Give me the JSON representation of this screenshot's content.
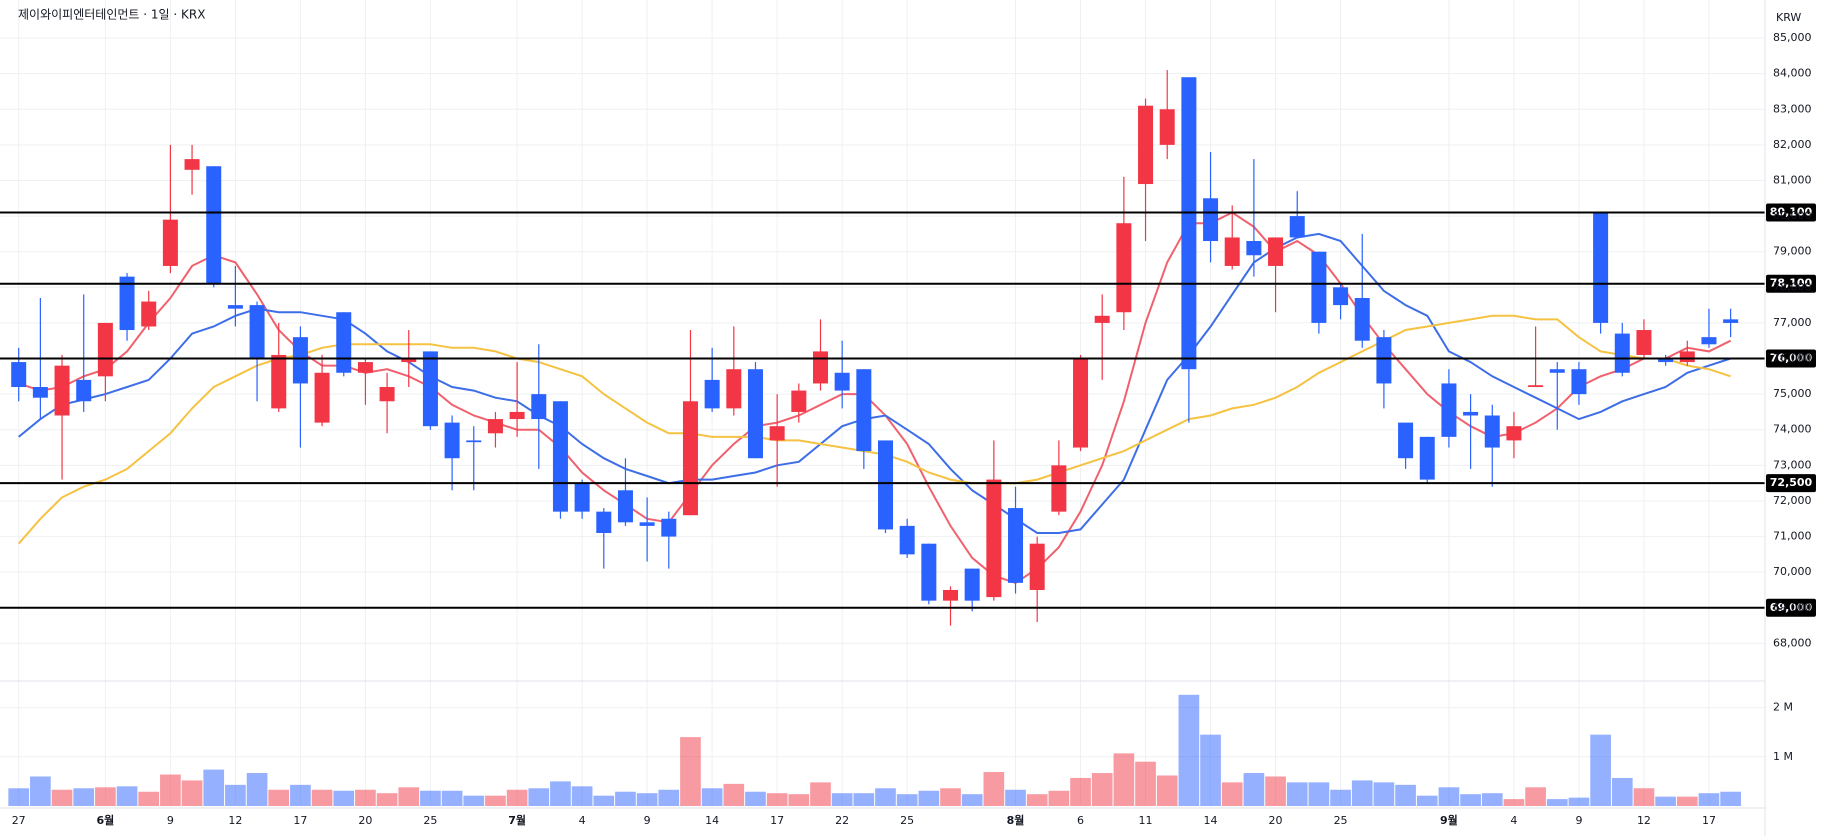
{
  "chart_data": {
    "type": "candlestick",
    "title": "제이와이피엔터테인먼트 · 1일 · KRX",
    "currency": "KRW",
    "up_color": "#f23645",
    "down_color": "#2962ff",
    "categories": [
      "27",
      null,
      null,
      null,
      "6월",
      null,
      null,
      "9",
      null,
      null,
      "12",
      null,
      null,
      "17",
      null,
      null,
      "20",
      null,
      null,
      "25",
      null,
      null,
      null,
      "7월",
      null,
      null,
      "4",
      null,
      null,
      "9",
      null,
      null,
      "14",
      null,
      null,
      "17",
      null,
      null,
      "22",
      null,
      null,
      "25",
      null,
      null,
      null,
      null,
      "8월",
      null,
      null,
      "6",
      null,
      null,
      "11",
      null,
      null,
      "14",
      null,
      null,
      "20",
      null,
      null,
      "25",
      null,
      null,
      null,
      null,
      "9월",
      null,
      null,
      "4",
      null,
      null,
      "9",
      null,
      null,
      "12",
      null,
      null,
      "17",
      null
    ],
    "open": [
      75900,
      75200,
      74400,
      75400,
      75500,
      78300,
      76900,
      78600,
      81300,
      81400,
      77500,
      77500,
      74600,
      76600,
      74200,
      77300,
      75600,
      74800,
      75900,
      76200,
      74200,
      73700,
      73900,
      74300,
      75000,
      74800,
      72500,
      71700,
      72300,
      71400,
      71500,
      71600,
      75400,
      74600,
      75700,
      73700,
      74500,
      75300,
      75600,
      75700,
      73700,
      71300,
      70800,
      69200,
      70100,
      69300,
      71800,
      69500,
      71700,
      73500,
      77000,
      77300,
      80900,
      82000,
      83900,
      80500,
      78600,
      79300,
      78600,
      80000,
      79000,
      78000,
      77700,
      76600,
      74200,
      73800,
      75300,
      74500,
      74400,
      73700,
      75200,
      75700,
      75700,
      80100,
      76700,
      76100,
      76000,
      75900,
      76600,
      77100
    ],
    "high": [
      76300,
      77700,
      76100,
      77800,
      77000,
      78400,
      77900,
      82000,
      82000,
      81400,
      78600,
      77600,
      77000,
      76900,
      76100,
      77300,
      76000,
      75600,
      76800,
      76200,
      74400,
      74100,
      74500,
      75900,
      76400,
      74800,
      72600,
      71800,
      73200,
      72100,
      71700,
      76800,
      76300,
      76900,
      75900,
      75000,
      75300,
      77100,
      76500,
      75700,
      73700,
      71500,
      70800,
      69600,
      70100,
      73700,
      72400,
      71000,
      73700,
      76100,
      77800,
      81100,
      83300,
      84100,
      83900,
      81800,
      80300,
      81600,
      79400,
      80700,
      79000,
      78100,
      79500,
      76800,
      74200,
      73800,
      75700,
      75000,
      74700,
      74500,
      76900,
      75900,
      75900,
      80100,
      77000,
      77100,
      76100,
      76500,
      77400,
      77400
    ],
    "low": [
      74800,
      74300,
      72600,
      74500,
      74800,
      76500,
      76800,
      78400,
      80600,
      78000,
      76900,
      74800,
      74500,
      73500,
      74100,
      75500,
      74700,
      73900,
      75200,
      74000,
      72300,
      72300,
      73500,
      73800,
      72900,
      71500,
      71500,
      70100,
      71300,
      70300,
      70100,
      71600,
      74500,
      74400,
      73200,
      72400,
      74200,
      75100,
      74600,
      72900,
      71100,
      70400,
      69100,
      68500,
      68900,
      69200,
      69400,
      68600,
      71600,
      73400,
      75400,
      76800,
      79300,
      81600,
      74200,
      78700,
      78500,
      78300,
      77300,
      79400,
      76700,
      77100,
      76300,
      74600,
      72900,
      72500,
      73500,
      72900,
      72400,
      73200,
      75200,
      74000,
      74700,
      76700,
      75500,
      76000,
      75800,
      75800,
      76300,
      76600
    ],
    "close": [
      75200,
      74900,
      75800,
      74800,
      77000,
      76800,
      77600,
      79900,
      81600,
      78100,
      77400,
      76000,
      76100,
      75300,
      75600,
      75600,
      75900,
      75200,
      76000,
      74100,
      73200,
      73650,
      74300,
      74500,
      74300,
      71700,
      71700,
      71100,
      71400,
      71300,
      71000,
      74800,
      74600,
      75700,
      73200,
      74100,
      75100,
      76200,
      75100,
      73400,
      71200,
      70500,
      69200,
      69500,
      69200,
      72600,
      69700,
      70800,
      73000,
      76000,
      77200,
      79800,
      83100,
      83000,
      75700,
      79300,
      79400,
      78900,
      79400,
      79400,
      77000,
      77500,
      76500,
      75300,
      73200,
      72600,
      73800,
      74400,
      73500,
      74100,
      75250,
      75600,
      75000,
      77000,
      75600,
      76800,
      75900,
      76200,
      76400,
      77000
    ],
    "series": [
      {
        "color": "#f0616d",
        "values": [
          75300,
          75100,
          75200,
          75500,
          75700,
          76200,
          77000,
          77700,
          78600,
          78900,
          78700,
          77800,
          76800,
          76200,
          75800,
          75800,
          75600,
          75700,
          75500,
          75200,
          74700,
          74400,
          74200,
          74000,
          74000,
          73500,
          72800,
          72300,
          71900,
          71500,
          71400,
          72200,
          73000,
          73600,
          74100,
          74200,
          74400,
          74700,
          75000,
          75000,
          74400,
          73600,
          72400,
          71300,
          70400,
          69900,
          69700,
          70100,
          70700,
          71700,
          73000,
          74800,
          77000,
          78700,
          79800,
          79800,
          80100,
          79700,
          79000,
          79300,
          78900,
          78100,
          77200,
          76400,
          75700,
          75000,
          74500,
          74100,
          73800,
          73900,
          74200,
          74600,
          75200,
          75500,
          75700,
          76000,
          76000,
          76300,
          76200,
          76500
        ]
      },
      {
        "color": "#3d6ee8",
        "values": [
          73800,
          74300,
          74700,
          74850,
          75000,
          75200,
          75400,
          76000,
          76700,
          76900,
          77200,
          77400,
          77300,
          77300,
          77200,
          77100,
          76700,
          76200,
          75900,
          75500,
          75200,
          75100,
          74900,
          74800,
          74400,
          74100,
          73600,
          73200,
          72900,
          72700,
          72500,
          72600,
          72600,
          72700,
          72800,
          73000,
          73100,
          73600,
          74100,
          74300,
          74400,
          74000,
          73600,
          72900,
          72300,
          71900,
          71500,
          71100,
          71100,
          71200,
          71900,
          72600,
          74000,
          75400,
          76100,
          76900,
          77800,
          78700,
          79100,
          79400,
          79500,
          79300,
          78600,
          77900,
          77500,
          77200,
          76200,
          75900,
          75500,
          75200,
          74900,
          74600,
          74300,
          74500,
          74800,
          75000,
          75200,
          75600,
          75800,
          76000
        ]
      },
      {
        "color": "#f5c242",
        "values": [
          70800,
          71500,
          72100,
          72400,
          72600,
          72900,
          73400,
          73900,
          74600,
          75200,
          75500,
          75800,
          76000,
          76100,
          76300,
          76400,
          76400,
          76400,
          76400,
          76400,
          76300,
          76300,
          76200,
          76000,
          75900,
          75700,
          75500,
          75000,
          74600,
          74200,
          73900,
          73900,
          73800,
          73800,
          73800,
          73700,
          73700,
          73600,
          73500,
          73400,
          73300,
          73100,
          72800,
          72600,
          72500,
          72500,
          72500,
          72600,
          72800,
          73000,
          73200,
          73400,
          73700,
          74000,
          74300,
          74400,
          74600,
          74700,
          74900,
          75200,
          75600,
          75900,
          76200,
          76500,
          76800,
          76900,
          77000,
          77100,
          77200,
          77200,
          77100,
          77100,
          76600,
          76200,
          76100,
          76000,
          76000,
          75800,
          75700,
          75500
        ]
      }
    ],
    "ylim": [
      67000,
      85900
    ],
    "yticks": [
      {
        "value": 68000,
        "label": "68,000"
      },
      {
        "value": 69000,
        "label": "69,000"
      },
      {
        "value": 70000,
        "label": "70,000"
      },
      {
        "value": 71000,
        "label": "71,000"
      },
      {
        "value": 72000,
        "label": "72,000"
      },
      {
        "value": 73000,
        "label": "73,000"
      },
      {
        "value": 74000,
        "label": "74,000"
      },
      {
        "value": 75000,
        "label": "75,000"
      },
      {
        "value": 76000,
        "label": "76,000"
      },
      {
        "value": 77000,
        "label": "77,000"
      },
      {
        "value": 78000,
        "label": "78,000"
      },
      {
        "value": 79000,
        "label": "79,000"
      },
      {
        "value": 80000,
        "label": "80,000"
      },
      {
        "value": 81000,
        "label": "81,000"
      },
      {
        "value": 82000,
        "label": "82,000"
      },
      {
        "value": 83000,
        "label": "83,000"
      },
      {
        "value": 84000,
        "label": "84,000"
      },
      {
        "value": 85000,
        "label": "85,000"
      }
    ],
    "levels": [
      {
        "value": 80100,
        "label": "80,100"
      },
      {
        "value": 78100,
        "label": "78,100"
      },
      {
        "value": 76000,
        "label": "76,000"
      },
      {
        "value": 72500,
        "label": "72,500"
      },
      {
        "value": 69000,
        "label": "69,000"
      }
    ],
    "grid": true,
    "volume": {
      "values": [
        360000,
        600000,
        330000,
        360000,
        380000,
        400000,
        290000,
        640000,
        520000,
        740000,
        430000,
        670000,
        330000,
        430000,
        330000,
        310000,
        330000,
        260000,
        380000,
        310000,
        310000,
        210000,
        210000,
        330000,
        360000,
        500000,
        400000,
        210000,
        290000,
        260000,
        330000,
        1400000,
        360000,
        450000,
        290000,
        260000,
        240000,
        480000,
        260000,
        260000,
        360000,
        240000,
        310000,
        360000,
        240000,
        690000,
        330000,
        240000,
        310000,
        570000,
        670000,
        1070000,
        900000,
        620000,
        2260000,
        1450000,
        480000,
        670000,
        600000,
        480000,
        480000,
        330000,
        520000,
        480000,
        430000,
        210000,
        380000,
        240000,
        260000,
        140000,
        380000,
        140000,
        170000,
        1450000,
        570000,
        360000,
        190000,
        190000,
        260000,
        290000
      ],
      "ylim": [
        0,
        2500000
      ],
      "yticks": [
        {
          "value": 1000000,
          "label": "1 M"
        },
        {
          "value": 2000000,
          "label": "2 M"
        }
      ]
    }
  }
}
